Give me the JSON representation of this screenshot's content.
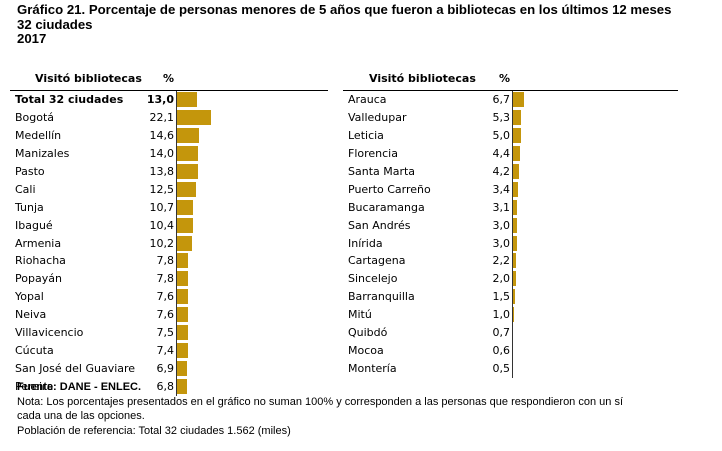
{
  "title": {
    "line1": "Gráfico 21. Porcentaje de personas menores de 5 años que fueron a bibliotecas en los últimos 12 meses",
    "line2": "32 ciudades",
    "line3": "2017"
  },
  "colors": {
    "bar": "#c4960c"
  },
  "chart_data": [
    {
      "type": "bar",
      "orientation": "horizontal",
      "column_headers": {
        "category": "Visitó bibliotecas",
        "value": "%"
      },
      "categories": [
        "Total 32 ciudades",
        "Bogotá",
        "Medellín",
        "Manizales",
        "Pasto",
        "Cali",
        "Tunja",
        "Ibagué",
        "Armenia",
        "Riohacha",
        "Popayán",
        "Yopal",
        "Neiva",
        "Villavicencio",
        "Cúcuta",
        "San José del Guaviare",
        "Pereira"
      ],
      "values": [
        13.0,
        22.1,
        14.6,
        14.0,
        13.8,
        12.5,
        10.7,
        10.4,
        10.2,
        7.8,
        7.8,
        7.6,
        7.6,
        7.5,
        7.4,
        6.9,
        6.8
      ],
      "value_labels": [
        "13,0",
        "22,1",
        "14,6",
        "14,0",
        "13,8",
        "12,5",
        "10,7",
        "10,4",
        "10,2",
        "7,8",
        "7,8",
        "7,6",
        "7,6",
        "7,5",
        "7,4",
        "6,9",
        "6,8"
      ]
    },
    {
      "type": "bar",
      "orientation": "horizontal",
      "column_headers": {
        "category": "Visitó bibliotecas",
        "value": "%"
      },
      "categories": [
        "Arauca",
        "Valledupar",
        "Leticia",
        "Florencia",
        "Santa Marta",
        "Puerto Carreño",
        "Bucaramanga",
        "San Andrés",
        "Inírida",
        "Cartagena",
        "Sincelejo",
        "Barranquilla",
        "Mitú",
        "Quibdó",
        "Mocoa",
        "Montería"
      ],
      "values": [
        6.7,
        5.3,
        5.0,
        4.4,
        4.2,
        3.4,
        3.1,
        3.0,
        3.0,
        2.2,
        2.0,
        1.5,
        1.0,
        0.7,
        0.6,
        0.5
      ],
      "value_labels": [
        "6,7",
        "5,3",
        "5,0",
        "4,4",
        "4,2",
        "3,4",
        "3,1",
        "3,0",
        "3,0",
        "2,2",
        "2,0",
        "1,5",
        "1,0",
        "0,7",
        "0,6",
        "0,5"
      ]
    }
  ],
  "footer": {
    "source": "Fuente: DANE - ENLEC.",
    "note_line1": "Nota: Los porcentajes presentados en el gráfico no suman 100% y corresponden a las personas que respondieron con un sí",
    "note_line2": "cada una de las opciones.",
    "population": "Población de referencia: Total 32 ciudades 1.562 (miles)"
  }
}
